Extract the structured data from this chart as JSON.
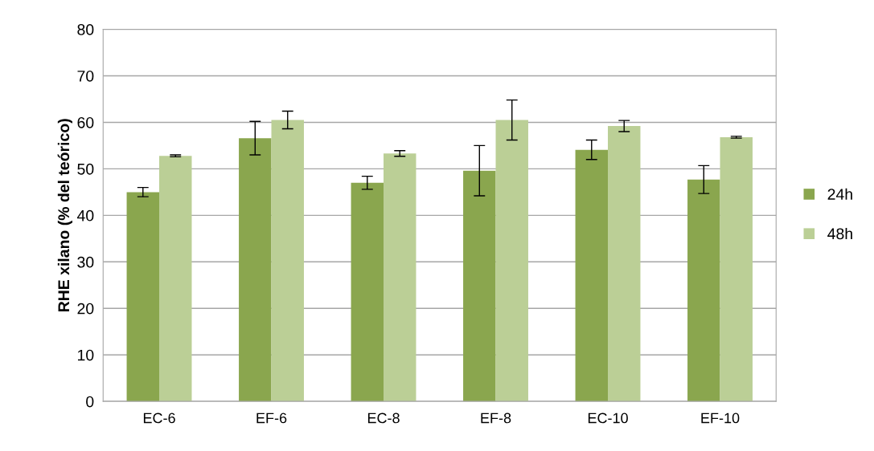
{
  "chart_data": {
    "type": "bar",
    "ylabel": "RHE xilano (% del teórico)",
    "categories": [
      "EC-6",
      "EF-6",
      "EC-8",
      "EF-8",
      "EC-10",
      "EF-10"
    ],
    "series": [
      {
        "name": "24h",
        "color": "#8aa64e",
        "values": [
          45.0,
          56.6,
          47.0,
          49.6,
          54.1,
          47.7
        ],
        "errors": [
          1.0,
          3.6,
          1.4,
          5.4,
          2.1,
          3.0
        ]
      },
      {
        "name": "48h",
        "color": "#bbcf96",
        "values": [
          52.8,
          60.5,
          53.3,
          60.5,
          59.2,
          56.8
        ],
        "errors": [
          0.2,
          1.9,
          0.6,
          4.3,
          1.2,
          0.2
        ]
      }
    ],
    "ylim": [
      0,
      80
    ],
    "yticks": [
      0,
      10,
      20,
      30,
      40,
      50,
      60,
      70,
      80
    ],
    "grid": "y",
    "legend": "right"
  }
}
